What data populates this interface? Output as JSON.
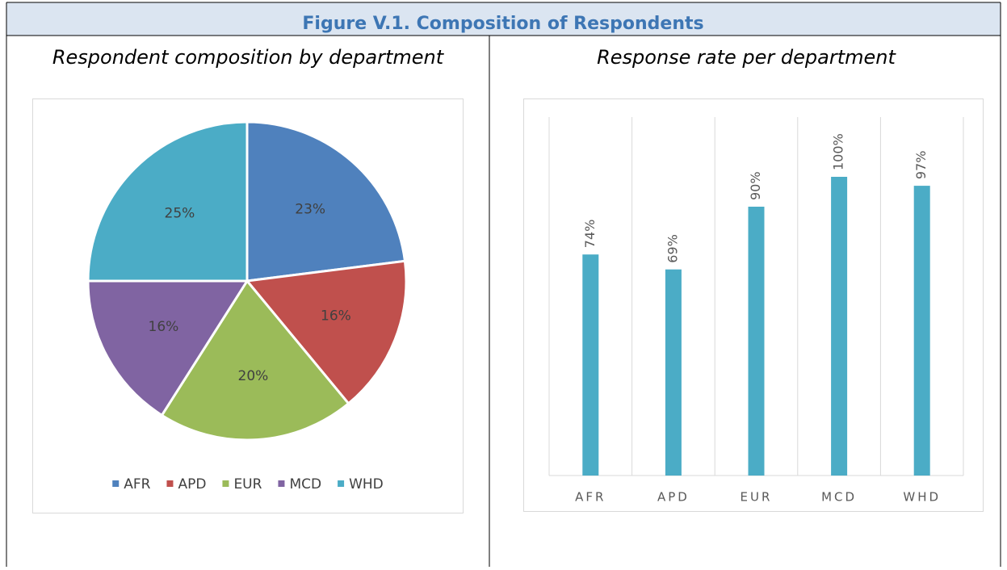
{
  "title": "Figure V.1. Composition of Respondents",
  "chart_data": [
    {
      "type": "pie",
      "title": "Respondent composition by department",
      "categories": [
        "AFR",
        "APD",
        "EUR",
        "MCD",
        "WHD"
      ],
      "values": [
        23,
        16,
        20,
        16,
        25
      ],
      "value_labels": [
        "23%",
        "16%",
        "20%",
        "16%",
        "25%"
      ],
      "colors": [
        "#4f81bd",
        "#c0504d",
        "#9bbb59",
        "#8064a2",
        "#4bacc6"
      ],
      "legend": "bottom"
    },
    {
      "type": "bar",
      "title": "Response rate per department",
      "categories": [
        "AFR",
        "APD",
        "EUR",
        "MCD",
        "WHD"
      ],
      "values": [
        74,
        69,
        90,
        100,
        97
      ],
      "value_labels": [
        "74%",
        "69%",
        "90%",
        "100%",
        "97%"
      ],
      "color": "#4bacc6",
      "ylim": [
        0,
        120
      ]
    }
  ]
}
